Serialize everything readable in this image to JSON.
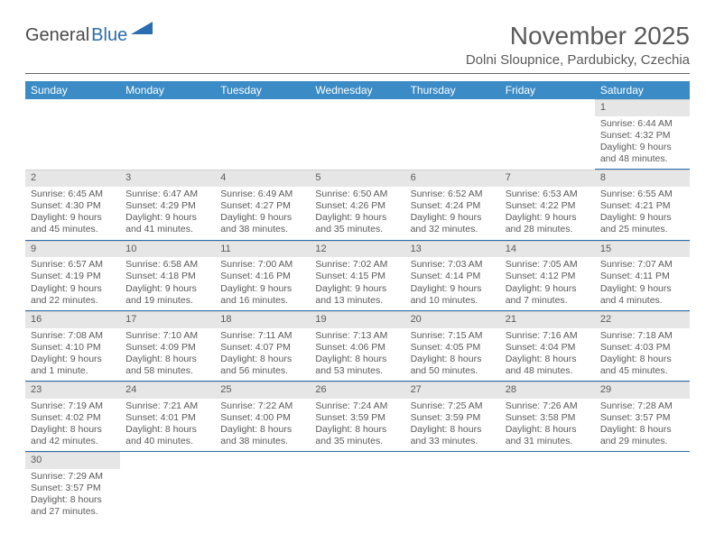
{
  "logo": {
    "text1": "General",
    "text2": "Blue"
  },
  "title": "November 2025",
  "location": "Dolni Sloupnice, Pardubicky, Czechia",
  "colors": {
    "header_bg": "#3b8bc6",
    "header_fg": "#ffffff",
    "daynum_bg": "#e6e6e6",
    "rule": "#2a6db0",
    "text": "#5a5a5a",
    "logo_blue": "#2a6db0"
  },
  "day_headers": [
    "Sunday",
    "Monday",
    "Tuesday",
    "Wednesday",
    "Thursday",
    "Friday",
    "Saturday"
  ],
  "weeks": [
    [
      null,
      null,
      null,
      null,
      null,
      null,
      {
        "n": "1",
        "sunrise": "Sunrise: 6:44 AM",
        "sunset": "Sunset: 4:32 PM",
        "day1": "Daylight: 9 hours",
        "day2": "and 48 minutes."
      }
    ],
    [
      {
        "n": "2",
        "sunrise": "Sunrise: 6:45 AM",
        "sunset": "Sunset: 4:30 PM",
        "day1": "Daylight: 9 hours",
        "day2": "and 45 minutes."
      },
      {
        "n": "3",
        "sunrise": "Sunrise: 6:47 AM",
        "sunset": "Sunset: 4:29 PM",
        "day1": "Daylight: 9 hours",
        "day2": "and 41 minutes."
      },
      {
        "n": "4",
        "sunrise": "Sunrise: 6:49 AM",
        "sunset": "Sunset: 4:27 PM",
        "day1": "Daylight: 9 hours",
        "day2": "and 38 minutes."
      },
      {
        "n": "5",
        "sunrise": "Sunrise: 6:50 AM",
        "sunset": "Sunset: 4:26 PM",
        "day1": "Daylight: 9 hours",
        "day2": "and 35 minutes."
      },
      {
        "n": "6",
        "sunrise": "Sunrise: 6:52 AM",
        "sunset": "Sunset: 4:24 PM",
        "day1": "Daylight: 9 hours",
        "day2": "and 32 minutes."
      },
      {
        "n": "7",
        "sunrise": "Sunrise: 6:53 AM",
        "sunset": "Sunset: 4:22 PM",
        "day1": "Daylight: 9 hours",
        "day2": "and 28 minutes."
      },
      {
        "n": "8",
        "sunrise": "Sunrise: 6:55 AM",
        "sunset": "Sunset: 4:21 PM",
        "day1": "Daylight: 9 hours",
        "day2": "and 25 minutes."
      }
    ],
    [
      {
        "n": "9",
        "sunrise": "Sunrise: 6:57 AM",
        "sunset": "Sunset: 4:19 PM",
        "day1": "Daylight: 9 hours",
        "day2": "and 22 minutes."
      },
      {
        "n": "10",
        "sunrise": "Sunrise: 6:58 AM",
        "sunset": "Sunset: 4:18 PM",
        "day1": "Daylight: 9 hours",
        "day2": "and 19 minutes."
      },
      {
        "n": "11",
        "sunrise": "Sunrise: 7:00 AM",
        "sunset": "Sunset: 4:16 PM",
        "day1": "Daylight: 9 hours",
        "day2": "and 16 minutes."
      },
      {
        "n": "12",
        "sunrise": "Sunrise: 7:02 AM",
        "sunset": "Sunset: 4:15 PM",
        "day1": "Daylight: 9 hours",
        "day2": "and 13 minutes."
      },
      {
        "n": "13",
        "sunrise": "Sunrise: 7:03 AM",
        "sunset": "Sunset: 4:14 PM",
        "day1": "Daylight: 9 hours",
        "day2": "and 10 minutes."
      },
      {
        "n": "14",
        "sunrise": "Sunrise: 7:05 AM",
        "sunset": "Sunset: 4:12 PM",
        "day1": "Daylight: 9 hours",
        "day2": "and 7 minutes."
      },
      {
        "n": "15",
        "sunrise": "Sunrise: 7:07 AM",
        "sunset": "Sunset: 4:11 PM",
        "day1": "Daylight: 9 hours",
        "day2": "and 4 minutes."
      }
    ],
    [
      {
        "n": "16",
        "sunrise": "Sunrise: 7:08 AM",
        "sunset": "Sunset: 4:10 PM",
        "day1": "Daylight: 9 hours",
        "day2": "and 1 minute."
      },
      {
        "n": "17",
        "sunrise": "Sunrise: 7:10 AM",
        "sunset": "Sunset: 4:09 PM",
        "day1": "Daylight: 8 hours",
        "day2": "and 58 minutes."
      },
      {
        "n": "18",
        "sunrise": "Sunrise: 7:11 AM",
        "sunset": "Sunset: 4:07 PM",
        "day1": "Daylight: 8 hours",
        "day2": "and 56 minutes."
      },
      {
        "n": "19",
        "sunrise": "Sunrise: 7:13 AM",
        "sunset": "Sunset: 4:06 PM",
        "day1": "Daylight: 8 hours",
        "day2": "and 53 minutes."
      },
      {
        "n": "20",
        "sunrise": "Sunrise: 7:15 AM",
        "sunset": "Sunset: 4:05 PM",
        "day1": "Daylight: 8 hours",
        "day2": "and 50 minutes."
      },
      {
        "n": "21",
        "sunrise": "Sunrise: 7:16 AM",
        "sunset": "Sunset: 4:04 PM",
        "day1": "Daylight: 8 hours",
        "day2": "and 48 minutes."
      },
      {
        "n": "22",
        "sunrise": "Sunrise: 7:18 AM",
        "sunset": "Sunset: 4:03 PM",
        "day1": "Daylight: 8 hours",
        "day2": "and 45 minutes."
      }
    ],
    [
      {
        "n": "23",
        "sunrise": "Sunrise: 7:19 AM",
        "sunset": "Sunset: 4:02 PM",
        "day1": "Daylight: 8 hours",
        "day2": "and 42 minutes."
      },
      {
        "n": "24",
        "sunrise": "Sunrise: 7:21 AM",
        "sunset": "Sunset: 4:01 PM",
        "day1": "Daylight: 8 hours",
        "day2": "and 40 minutes."
      },
      {
        "n": "25",
        "sunrise": "Sunrise: 7:22 AM",
        "sunset": "Sunset: 4:00 PM",
        "day1": "Daylight: 8 hours",
        "day2": "and 38 minutes."
      },
      {
        "n": "26",
        "sunrise": "Sunrise: 7:24 AM",
        "sunset": "Sunset: 3:59 PM",
        "day1": "Daylight: 8 hours",
        "day2": "and 35 minutes."
      },
      {
        "n": "27",
        "sunrise": "Sunrise: 7:25 AM",
        "sunset": "Sunset: 3:59 PM",
        "day1": "Daylight: 8 hours",
        "day2": "and 33 minutes."
      },
      {
        "n": "28",
        "sunrise": "Sunrise: 7:26 AM",
        "sunset": "Sunset: 3:58 PM",
        "day1": "Daylight: 8 hours",
        "day2": "and 31 minutes."
      },
      {
        "n": "29",
        "sunrise": "Sunrise: 7:28 AM",
        "sunset": "Sunset: 3:57 PM",
        "day1": "Daylight: 8 hours",
        "day2": "and 29 minutes."
      }
    ],
    [
      {
        "n": "30",
        "sunrise": "Sunrise: 7:29 AM",
        "sunset": "Sunset: 3:57 PM",
        "day1": "Daylight: 8 hours",
        "day2": "and 27 minutes."
      },
      null,
      null,
      null,
      null,
      null,
      null
    ]
  ]
}
